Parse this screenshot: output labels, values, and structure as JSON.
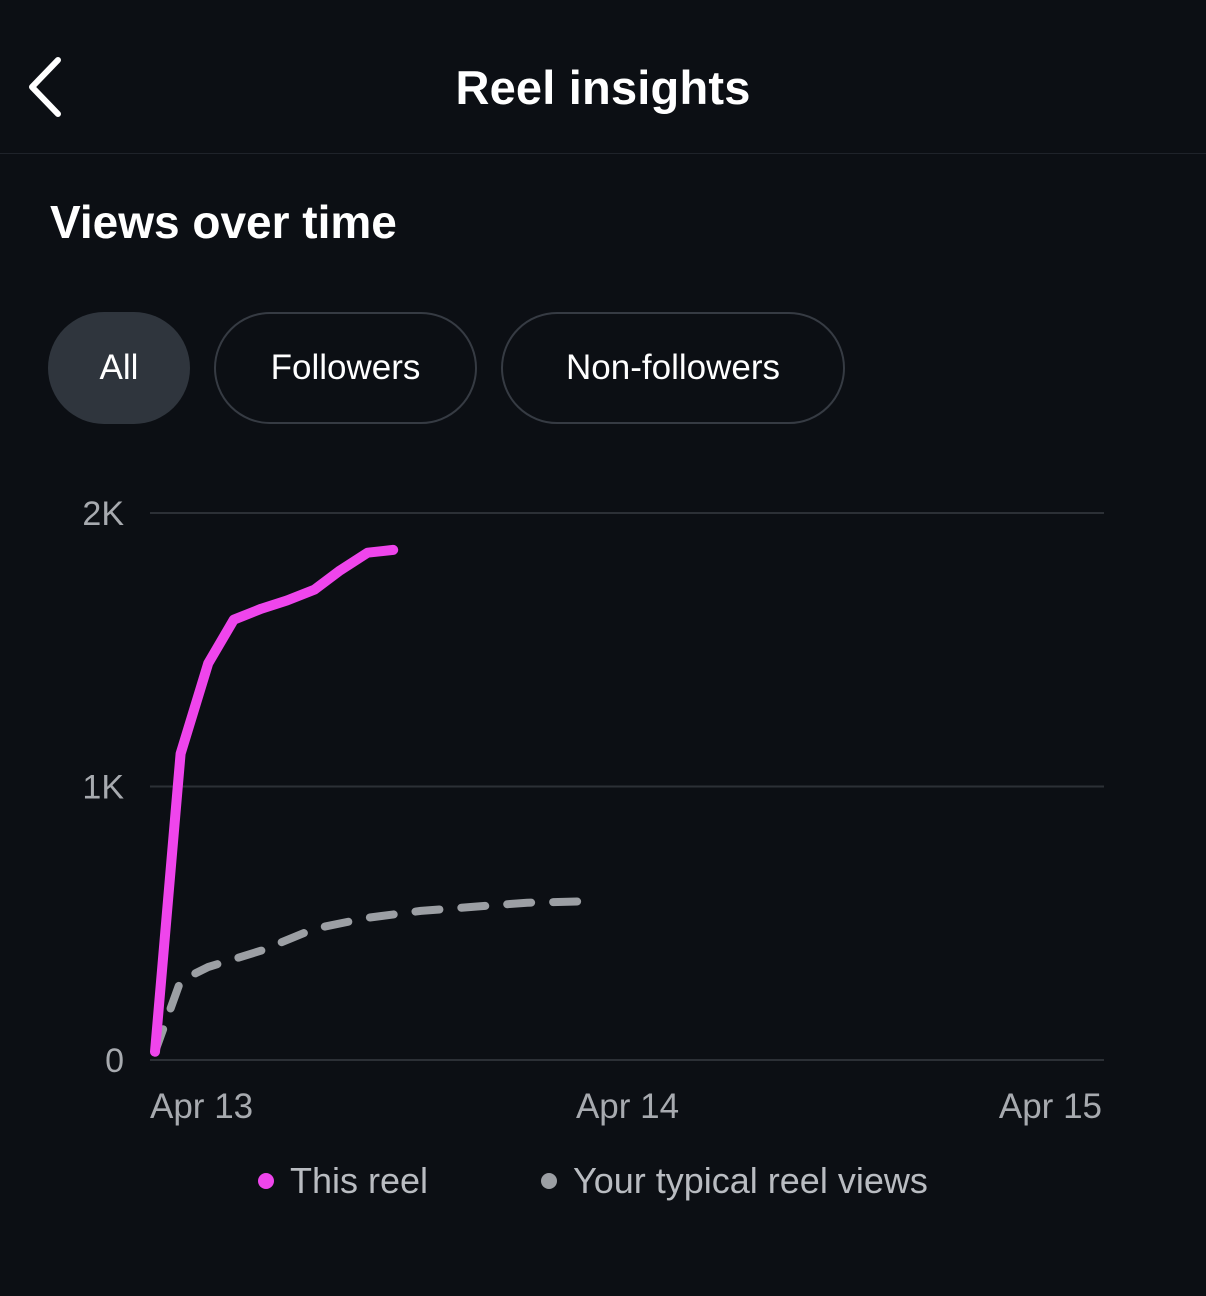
{
  "header": {
    "title": "Reel insights",
    "back_icon": "chevron-left-icon"
  },
  "section": {
    "title": "Views over time"
  },
  "filters": [
    {
      "label": "All",
      "selected": true
    },
    {
      "label": "Followers",
      "selected": false
    },
    {
      "label": "Non-followers",
      "selected": false
    }
  ],
  "legend": {
    "this_reel": "This reel",
    "typical": "Your typical reel views"
  },
  "colors": {
    "background": "#0c0f14",
    "this_reel": "#ef45ec",
    "typical": "#9c9fa4",
    "chip_selected": "#2f353d",
    "gridline": "#2c3036",
    "axis_text": "#a7aaaf"
  },
  "chart_data": {
    "type": "line",
    "xlabel": "",
    "ylabel": "",
    "x_tick_labels": [
      "Apr 13",
      "Apr 14",
      "Apr 15"
    ],
    "y_tick_labels": [
      "0",
      "1K",
      "2K"
    ],
    "xlim": [
      0,
      48
    ],
    "ylim": [
      0,
      2000
    ],
    "x_unit": "hours since Apr 13",
    "grid": true,
    "legend_position": "bottom",
    "series": [
      {
        "name": "This reel",
        "style": "solid",
        "x": [
          0,
          1.3,
          2.7,
          4.0,
          5.4,
          6.7,
          8.1,
          9.4,
          10.8,
          12.1
        ],
        "y": [
          30,
          1120,
          1450,
          1610,
          1650,
          1680,
          1720,
          1790,
          1855,
          1865
        ]
      },
      {
        "name": "Your typical reel views",
        "style": "dashed",
        "x": [
          0,
          1.3,
          2.7,
          5.4,
          8.1,
          10.8,
          13.5,
          16.2,
          18.9,
          21.6
        ],
        "y": [
          30,
          290,
          340,
          400,
          480,
          520,
          545,
          560,
          575,
          580
        ]
      }
    ]
  }
}
